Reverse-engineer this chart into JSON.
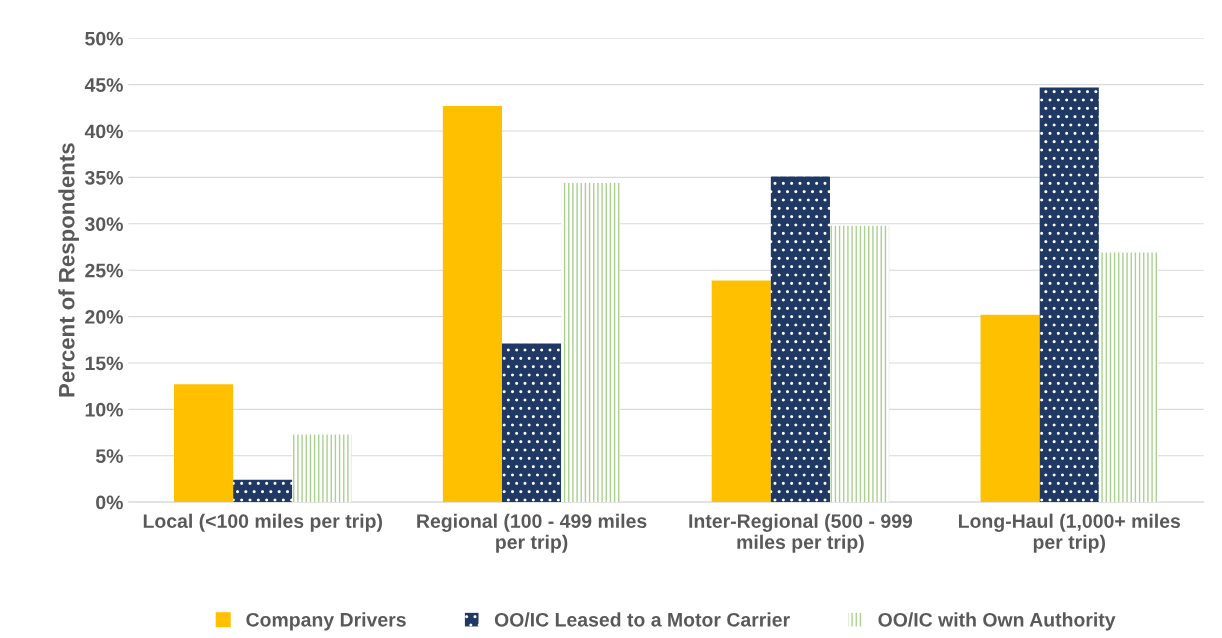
{
  "chart_data": {
    "type": "bar",
    "ylabel": "Percent of Respondents",
    "categories": [
      "Local (<100 miles per trip)",
      "Regional (100 - 499 miles per trip)",
      "Inter-Regional (500 - 999 miles per trip)",
      "Long-Haul (1,000+ miles per trip)"
    ],
    "series": [
      {
        "name": "Company Drivers",
        "color": "#ffc000",
        "values": [
          12.7,
          42.7,
          23.9,
          20.2
        ]
      },
      {
        "name": "OO/IC Leased to a Motor Carrier",
        "color": "#1f3864",
        "values": [
          2.4,
          17.1,
          35.1,
          44.7
        ]
      },
      {
        "name": "OO/IC with Own Authority",
        "color": "#a9d18e",
        "values": [
          7.3,
          34.4,
          29.8,
          26.9
        ]
      }
    ],
    "ylim": [
      0,
      50
    ],
    "yticks": [
      {
        "value": 0,
        "label": "0%"
      },
      {
        "value": 5,
        "label": "5%"
      },
      {
        "value": 10,
        "label": "10%"
      },
      {
        "value": 15,
        "label": "15%"
      },
      {
        "value": 20,
        "label": "20%"
      },
      {
        "value": 25,
        "label": "25%"
      },
      {
        "value": 30,
        "label": "30%"
      },
      {
        "value": 35,
        "label": "35%"
      },
      {
        "value": 40,
        "label": "40%"
      },
      {
        "value": 45,
        "label": "45%"
      },
      {
        "value": 50,
        "label": "50%"
      }
    ],
    "grid": "y",
    "legend": "bottom"
  }
}
